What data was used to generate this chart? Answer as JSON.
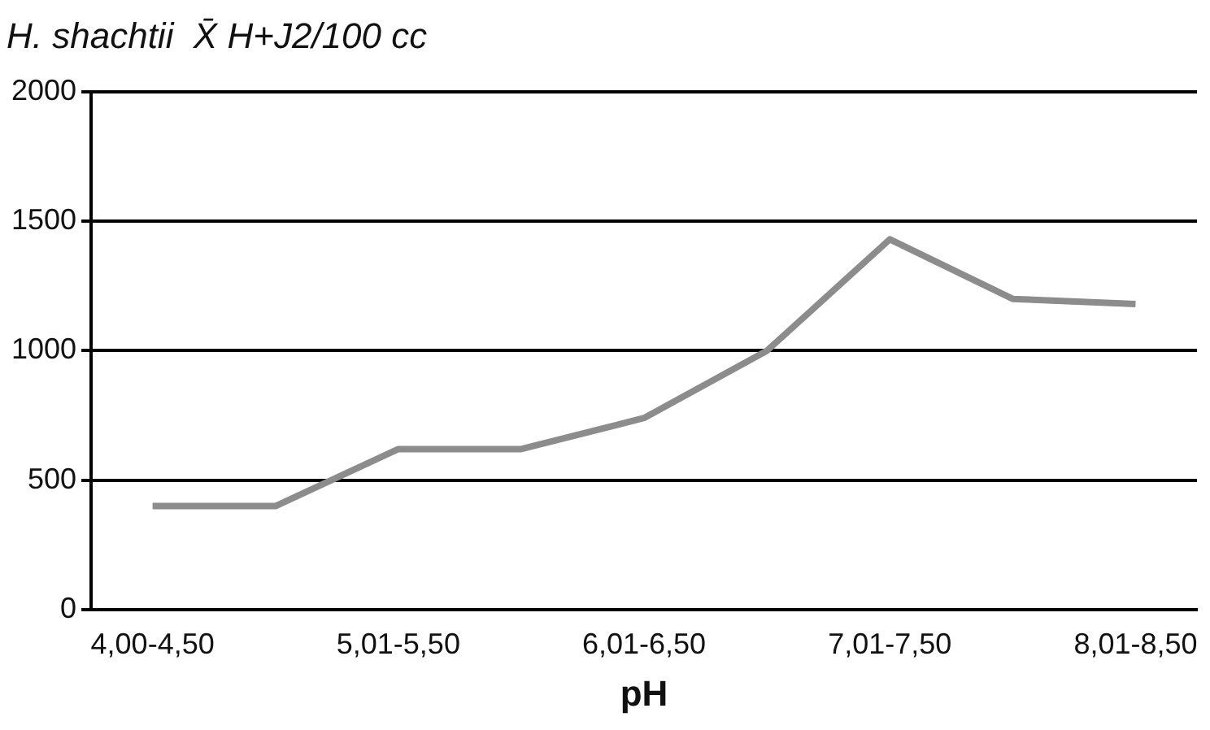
{
  "chart_data": {
    "type": "line",
    "title": "H. shachtii  X̄ H+J2/100 cc",
    "xlabel": "pH",
    "categories": [
      "4,00-4,50",
      null,
      "5,01-5,50",
      null,
      "6,01-6,50",
      null,
      "7,01-7,50",
      null,
      "8,01-8,50"
    ],
    "series": [
      {
        "color": "#8c8c8c",
        "values": [
          400,
          400,
          620,
          620,
          740,
          1000,
          1430,
          1200,
          1180
        ]
      }
    ],
    "ylim": [
      0,
      2000
    ],
    "yticks": [
      0,
      500,
      1000,
      1500,
      2000
    ],
    "grid": "y",
    "legend": false,
    "marker": "none",
    "line_style": "solid"
  }
}
